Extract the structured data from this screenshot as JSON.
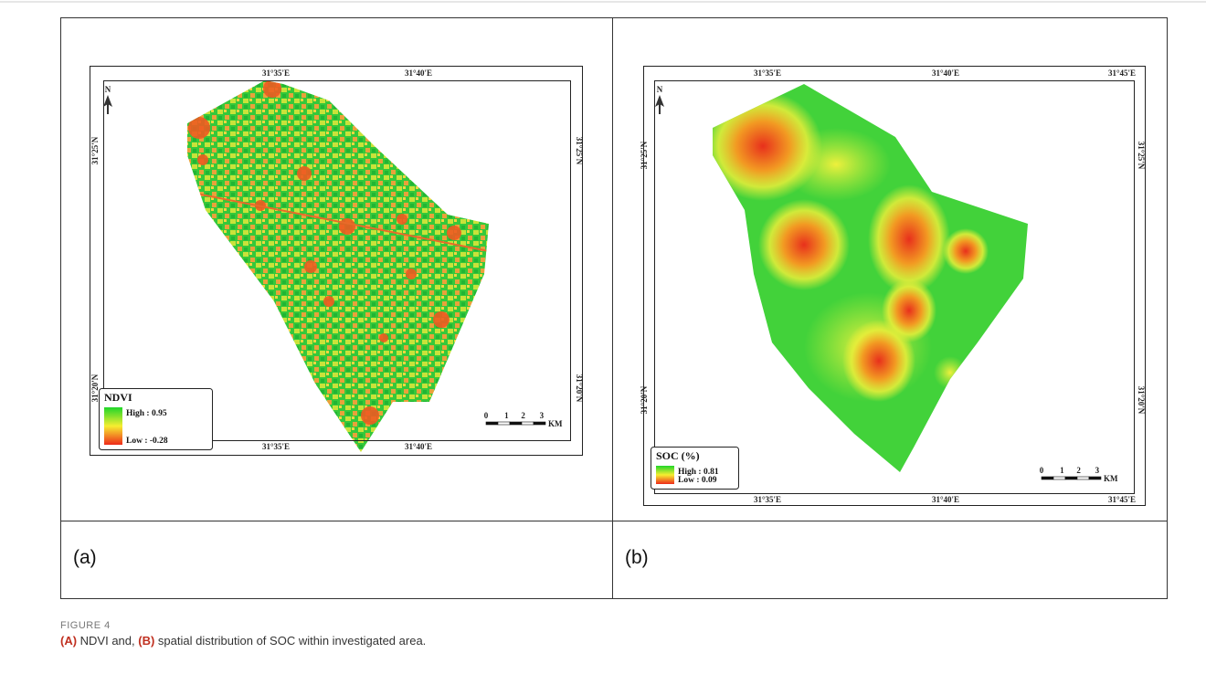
{
  "figure": {
    "panels": [
      {
        "label": "(a)",
        "top_labels": [
          "31°35'E",
          "31°40'E"
        ],
        "bottom_labels": [
          "31°35'E",
          "31°40'E"
        ],
        "left_labels": [
          "31°25'N",
          "31°20'N"
        ],
        "right_labels": [
          "31°25'N",
          "31°20'N"
        ],
        "north": "N",
        "legend": {
          "title": "NDVI",
          "high": "High : 0.95",
          "low": "Low : -0.28"
        },
        "scale": {
          "ticks": [
            0,
            1,
            2,
            3
          ],
          "unit": "KM"
        }
      },
      {
        "label": "(b)",
        "top_labels": [
          "31°35'E",
          "31°40'E",
          "31°45'E"
        ],
        "bottom_labels": [
          "31°35'E",
          "31°40'E",
          "31°45'E"
        ],
        "left_labels": [
          "31°25'N",
          "31°20'N"
        ],
        "right_labels": [
          "31°25'N",
          "31°20'N"
        ],
        "north": "N",
        "legend": {
          "title": "SOC (%)",
          "high": "High : 0.81",
          "low": "Low : 0.09"
        },
        "scale": {
          "ticks": [
            0,
            1,
            2,
            3
          ],
          "unit": "KM"
        }
      }
    ],
    "caption": {
      "label": "FIGURE 4",
      "parts": [
        "(A)",
        " NDVI and, ",
        "(B)",
        " spatial distribution of SOC within investigated area."
      ]
    }
  }
}
